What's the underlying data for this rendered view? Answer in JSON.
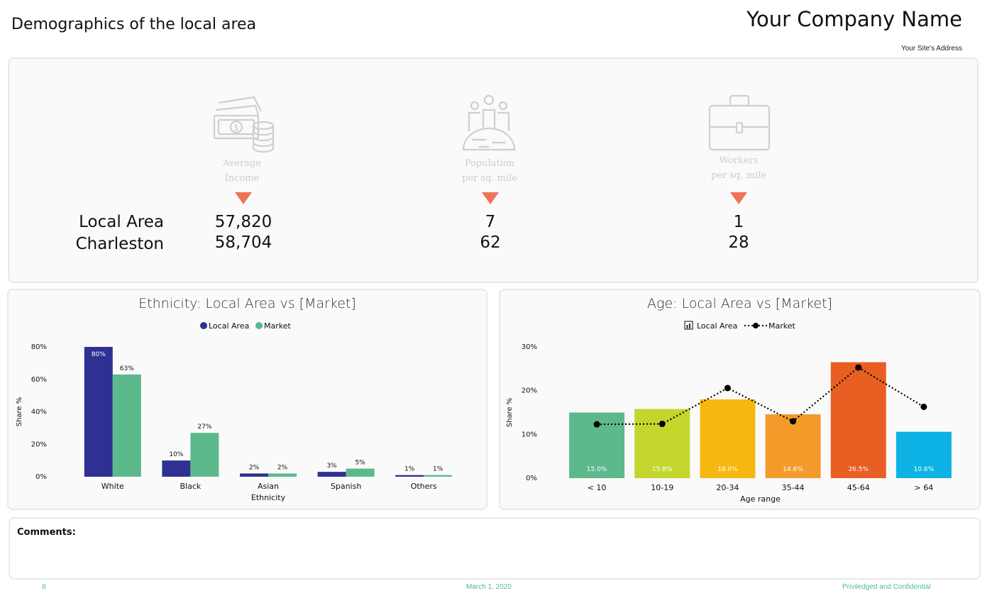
{
  "header": {
    "title": "Demographics of the local area",
    "company": "Your Company Name",
    "address": "Your Site's Address"
  },
  "kpi": {
    "row_labels": [
      "Local Area",
      "Charleston"
    ],
    "columns": [
      {
        "caption_line1": "Average",
        "caption_line2": "Income",
        "icon": "money-icon",
        "local": "57,820",
        "market": "58,704"
      },
      {
        "caption_line1": "Population",
        "caption_line2": "per sq. mile",
        "icon": "population-icon",
        "local": "7",
        "market": "62"
      },
      {
        "caption_line1": "Workers",
        "caption_line2": "per sq. mile",
        "icon": "briefcase-icon",
        "local": "1",
        "market": "28"
      }
    ],
    "arrow_color": "#ef7359"
  },
  "chart_data": [
    {
      "type": "bar",
      "title": "Ethnicity: Local Area vs [Market]",
      "xlabel": "Ethnicity",
      "ylabel": "Share %",
      "ylim": [
        0,
        80
      ],
      "yticks": [
        "0%",
        "20%",
        "40%",
        "60%",
        "80%"
      ],
      "legend_position": "top-center",
      "categories": [
        "White",
        "Black",
        "Asian",
        "Spanish",
        "Others"
      ],
      "series": [
        {
          "name": "Local Area",
          "color": "#2e3192",
          "values": [
            80,
            10,
            2,
            3,
            1
          ],
          "labels": [
            "80%",
            "10%",
            "2%",
            "3%",
            "1%"
          ]
        },
        {
          "name": "Market",
          "color": "#5bb98c",
          "values": [
            63,
            27,
            2,
            5,
            1
          ],
          "labels": [
            "63%",
            "27%",
            "2%",
            "5%",
            "1%"
          ]
        }
      ]
    },
    {
      "type": "bar",
      "title": "Age: Local Area vs [Market]",
      "xlabel": "Age range",
      "ylabel": "Share %",
      "ylim": [
        0,
        30
      ],
      "yticks": [
        "0%",
        "10%",
        "20%",
        "30%"
      ],
      "legend_position": "top-center",
      "categories": [
        "< 10",
        "10-19",
        "20-34",
        "35-44",
        "45-64",
        "> 64"
      ],
      "series": [
        {
          "name": "Local Area",
          "type": "bar",
          "values": [
            15.0,
            15.8,
            18.0,
            14.6,
            26.5,
            10.6
          ],
          "labels": [
            "15.0%",
            "15.8%",
            "18.0%",
            "14.6%",
            "26.5%",
            "10.6%"
          ],
          "colors": [
            "#5bb98c",
            "#c3d62e",
            "#f6b810",
            "#f49a2a",
            "#e95e22",
            "#0cb3e4"
          ]
        },
        {
          "name": "Market",
          "type": "line",
          "style": "dotted",
          "color": "#000000",
          "values": [
            12.3,
            12.4,
            20.6,
            13.0,
            25.3,
            16.3
          ]
        }
      ]
    }
  ],
  "comments": {
    "label": "Comments:"
  },
  "footer": {
    "page": "8",
    "date": "March 1, 2020",
    "confidential": "Priviledged and Confidential"
  }
}
